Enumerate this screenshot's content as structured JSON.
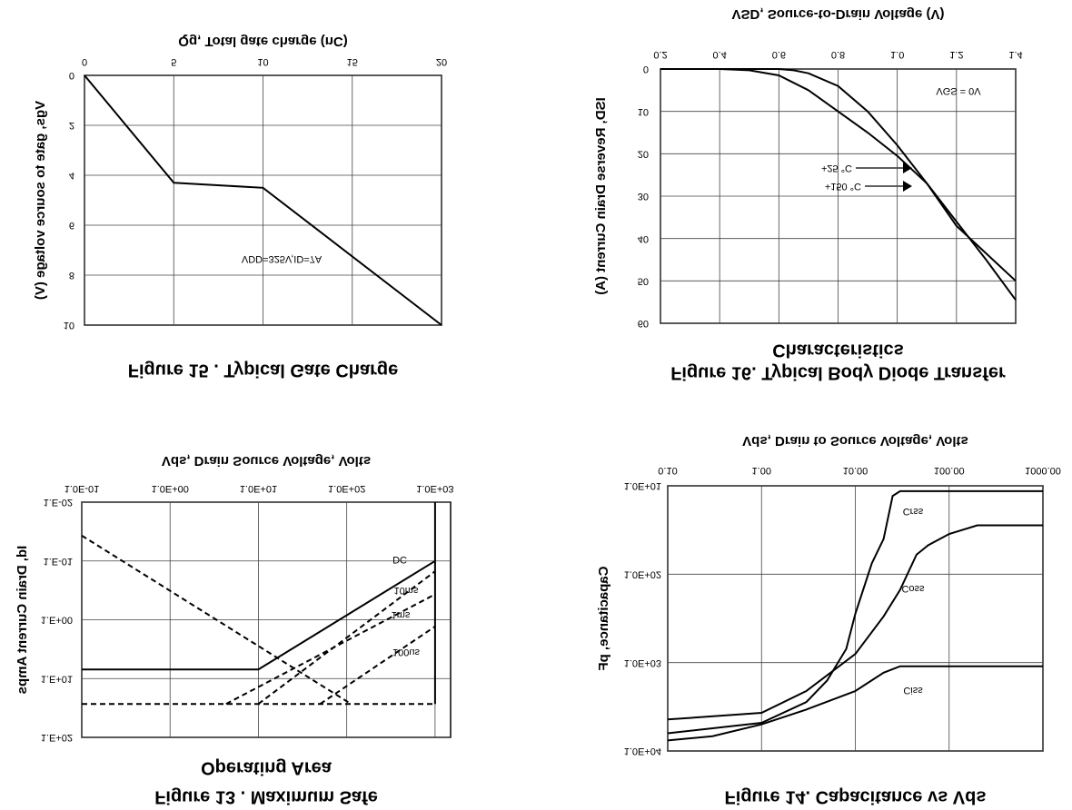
{
  "chart_data": [
    {
      "type": "line",
      "title": [
        "Figure 15 . Typical Gate Charge"
      ],
      "x_label": "Qg, Total gate charge (nC)",
      "y_label": "Vgs, gate to source voltage (V)",
      "xscale": "linear",
      "yscale": "linear",
      "xlim": [
        0,
        20
      ],
      "ylim": [
        0,
        10
      ],
      "xticks": [
        0,
        5,
        10,
        15,
        20
      ],
      "yticks": [
        0,
        2,
        4,
        6,
        8,
        10
      ],
      "grid": true,
      "annotations": [
        "VDD=325V,ID=7A"
      ],
      "series": [
        {
          "color": "#000000",
          "x": [
            0,
            5,
            10,
            20
          ],
          "values": [
            0,
            4.3,
            4.5,
            10
          ]
        }
      ]
    },
    {
      "type": "line",
      "title": [
        "Figure 16.  Typical Body Diode Transfer",
        "Characteristics"
      ],
      "x_label": "VSD, Source-to-Drain Voltage (V)",
      "y_label": "ISD, Reverse Drain Current (A)",
      "xscale": "linear",
      "yscale": "linear",
      "xlim": [
        0.2,
        1.4
      ],
      "ylim": [
        0,
        60
      ],
      "xticks": [
        0.2,
        0.4,
        0.6,
        0.8,
        {
          "value": 1,
          "label": "1.0"
        },
        1.2,
        1.4
      ],
      "yticks": [
        0,
        10,
        20,
        30,
        40,
        50,
        60
      ],
      "grid": true,
      "annotations": [
        "VGS = 0V"
      ],
      "series": [
        {
          "name": "+25 °C",
          "color": "#000000",
          "x": [
            0.2,
            0.6,
            0.65,
            0.7,
            0.8,
            0.9,
            1.0,
            1.1,
            1.2,
            1.3,
            1.4
          ],
          "values": [
            0,
            0,
            0.3,
            1,
            4,
            10,
            18,
            27,
            36,
            45,
            54.5
          ]
        },
        {
          "name": "+150 °C",
          "color": "#000000",
          "x": [
            0.2,
            0.4,
            0.5,
            0.6,
            0.7,
            0.8,
            0.9,
            1.0,
            1.1,
            1.2,
            1.3,
            1.4
          ],
          "values": [
            0,
            0,
            0.3,
            1.5,
            5,
            10,
            15,
            20.5,
            27,
            37,
            43.5,
            50
          ]
        }
      ]
    },
    {
      "type": "line",
      "title": [
        "Figure 13 . Maximum Safe",
        "Operating Area"
      ],
      "x_label": "Vds, Drain Source Voltage, Volts",
      "y_label": "Id, Drain Current Amps",
      "xscale": "log",
      "yscale": "log",
      "xlim": [
        0.1,
        1500
      ],
      "ylim": [
        0.01,
        100
      ],
      "xticks": [
        {
          "value": 0.1,
          "label": "1.0E-01"
        },
        {
          "value": 1,
          "label": "1.0E+00"
        },
        {
          "value": 10,
          "label": "1.0E+01"
        },
        {
          "value": 100,
          "label": "1.0E+02"
        },
        {
          "value": 1000,
          "label": "1.0E+03"
        }
      ],
      "yticks": [
        {
          "value": 0.01,
          "label": "1.E-02"
        },
        {
          "value": 0.1,
          "label": "1.E-01"
        },
        {
          "value": 1,
          "label": "1.E+00"
        },
        {
          "value": 10,
          "label": "1.E+01"
        },
        {
          "value": 100,
          "label": "1.E+02"
        }
      ],
      "grid": true,
      "series": [
        {
          "name": "DC",
          "color": "#000000",
          "x": [
            0.1,
            10,
            1000
          ],
          "values": [
            7,
            7,
            0.1
          ]
        },
        {
          "name": "10ms",
          "color": "#000000",
          "dash": true,
          "x": [
            10,
            1000
          ],
          "values": [
            27,
            0.15
          ]
        },
        {
          "name": "1ms",
          "color": "#000000",
          "dash": true,
          "x": [
            4.3,
            1000
          ],
          "values": [
            27,
            0.37
          ]
        },
        {
          "name": "100us",
          "color": "#000000",
          "dash": true,
          "x": [
            50,
            1000
          ],
          "values": [
            27,
            1.3
          ]
        },
        {
          "color": "#000000",
          "dash": true,
          "x": [
            0.1,
            1000
          ],
          "values": [
            27,
            27
          ]
        },
        {
          "color": "#000000",
          "dash": true,
          "x": [
            0.1,
            112
          ],
          "values": [
            0.037,
            27
          ]
        },
        {
          "color": "#000000",
          "x": [
            1000,
            1000
          ],
          "values": [
            0.01,
            27
          ]
        }
      ]
    },
    {
      "type": "line",
      "title": [
        "Figure 14. Capacitance vs Vds"
      ],
      "x_label": "Vds, Drain to Source Voltage, Volts",
      "y_label": "Capacitance, pF",
      "xscale": "log",
      "yscale": "log",
      "xlim": [
        0.1,
        1000
      ],
      "ylim": [
        10,
        10000
      ],
      "xticks": [
        {
          "value": 0.1,
          "label": "0.10"
        },
        {
          "value": 1,
          "label": "1.00"
        },
        {
          "value": 10,
          "label": "10.00"
        },
        {
          "value": 100,
          "label": "100.00"
        },
        {
          "value": 1000,
          "label": "1000.00"
        }
      ],
      "yticks": [
        {
          "value": 10,
          "label": "1.0E+01"
        },
        {
          "value": 100,
          "label": "1.0E+02"
        },
        {
          "value": 1000,
          "label": "1.0E+03"
        },
        {
          "value": 10000,
          "label": "1.0E+04"
        }
      ],
      "grid": true,
      "series": [
        {
          "name": "Crss",
          "color": "#000000",
          "x": [
            0.1,
            1,
            3,
            5,
            8,
            10,
            15,
            20,
            25,
            30,
            1000
          ],
          "values": [
            6300,
            4800,
            2800,
            1600,
            700,
            280,
            75,
            40,
            13,
            11.5,
            11.5
          ]
        },
        {
          "name": "Coss",
          "color": "#000000",
          "x": [
            0.1,
            1,
            3,
            10,
            20,
            30,
            45,
            60,
            100,
            200,
            1000
          ],
          "values": [
            4400,
            3700,
            2100,
            800,
            300,
            150,
            60,
            47,
            35,
            28,
            28
          ]
        },
        {
          "name": "Ciss",
          "color": "#000000",
          "x": [
            0.1,
            0.3,
            1,
            3,
            10,
            20,
            30,
            1000
          ],
          "values": [
            7600,
            6800,
            5000,
            3400,
            2100,
            1300,
            1100,
            1100
          ]
        }
      ]
    }
  ]
}
